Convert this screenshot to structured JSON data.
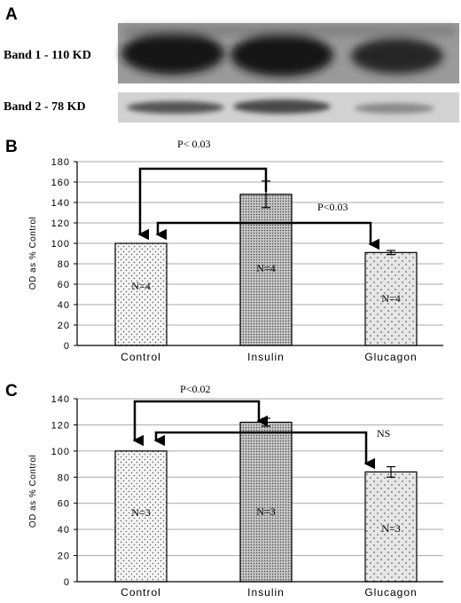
{
  "blot": {
    "panel_label": "A",
    "bands": [
      {
        "label": "Band 1 - 110 KD"
      },
      {
        "label": "Band 2 - 78 KD"
      }
    ]
  },
  "chart_data": [
    {
      "type": "bar",
      "panel_label": "B",
      "categories": [
        "Control",
        "Insulin",
        "Glucagon"
      ],
      "values": [
        100,
        148,
        91
      ],
      "errors": [
        0,
        13,
        2
      ],
      "bar_labels": [
        "N=4",
        "N=4",
        "N=4"
      ],
      "ylabel": "OD as % Control",
      "ylim": [
        0,
        180
      ],
      "yticks": [
        0,
        20,
        40,
        60,
        80,
        100,
        120,
        140,
        160,
        180
      ],
      "grid": true,
      "annotations": [
        "P< 0.03",
        "P<0.03"
      ]
    },
    {
      "type": "bar",
      "panel_label": "C",
      "categories": [
        "Control",
        "Insulin",
        "Glucagon"
      ],
      "values": [
        100,
        122,
        84
      ],
      "errors": [
        0,
        3,
        4
      ],
      "bar_labels": [
        "N=3",
        "N=3",
        "N=3"
      ],
      "ylabel": "OD as % Control",
      "ylim": [
        0,
        140
      ],
      "yticks": [
        0,
        20,
        40,
        60,
        80,
        100,
        120,
        140
      ],
      "grid": true,
      "annotations": [
        "P<0.02",
        "NS"
      ]
    }
  ],
  "colors": {
    "control_fill": "#f2f2f2",
    "insulin_fill": "#bdbdbd",
    "glucagon_fill": "#dedede",
    "grid": "#a8a8a8",
    "blot_dark": "#1a1a1a",
    "blot_light": "#c8c8c8"
  }
}
